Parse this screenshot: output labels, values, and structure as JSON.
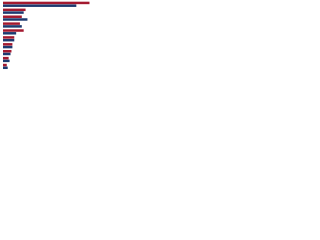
{
  "chart_data": {
    "type": "hbar",
    "categories": [
      null,
      null,
      null,
      null,
      null,
      null,
      null,
      null,
      null,
      null
    ],
    "series": [
      {
        "color": "#a3192f",
        "values": [
          92,
          24,
          20,
          18,
          22,
          12,
          10,
          9,
          6,
          4
        ]
      },
      {
        "color": "#1d3a70",
        "values": [
          78,
          22,
          26,
          20,
          14,
          12,
          10,
          8,
          7,
          5
        ]
      }
    ],
    "xlim": [
      0,
      100
    ]
  }
}
